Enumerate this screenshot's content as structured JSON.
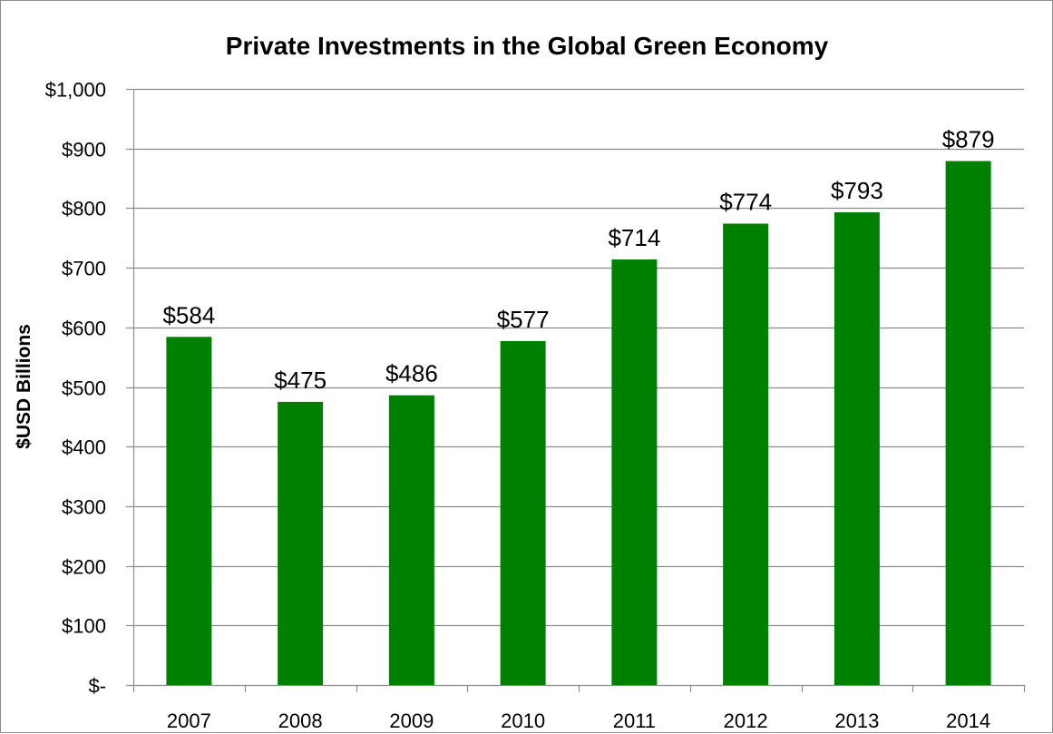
{
  "chart_data": {
    "type": "bar",
    "title": "Private Investments in the Global Green Economy",
    "xlabel": "",
    "ylabel": "$USD Billions",
    "categories": [
      "2007",
      "2008",
      "2009",
      "2010",
      "2011",
      "2012",
      "2013",
      "2014"
    ],
    "values": [
      584,
      475,
      486,
      577,
      714,
      774,
      793,
      879
    ],
    "data_labels": [
      "$584",
      "$475",
      "$486",
      "$577",
      "$714",
      "$774",
      "$793",
      "$879"
    ],
    "ylim": [
      0,
      1000
    ],
    "y_ticks": [
      0,
      100,
      200,
      300,
      400,
      500,
      600,
      700,
      800,
      900,
      1000
    ],
    "y_tick_labels": [
      "$-",
      "$100",
      "$200",
      "$300",
      "$400",
      "$500",
      "$600",
      "$700",
      "$800",
      "$900",
      "$1,000"
    ],
    "grid": true,
    "legend": "none",
    "bar_color": "#008000",
    "grid_color": "#8c8c8c"
  }
}
